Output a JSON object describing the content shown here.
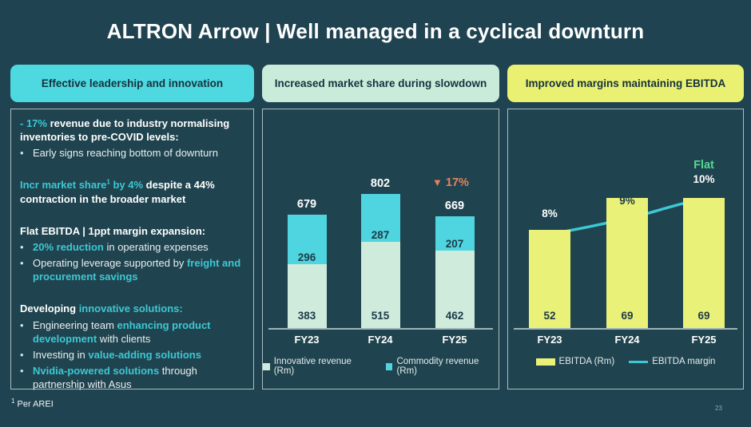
{
  "header": {
    "title": "ALTRON Arrow | Well managed in a cyclical downturn"
  },
  "page_number": "23",
  "footnote": {
    "sup": "1",
    "text": "Per AREI"
  },
  "colors": {
    "background": "#1f4350",
    "pill_cyan": "#4ed8e0",
    "pill_mint": "#c9ebda",
    "pill_yellow": "#eaf172",
    "accent_cyan_text": "#3cc8d4",
    "bar_mint": "#cfebdc",
    "bar_cyan": "#4fd5df",
    "bar_yellow": "#eaf178",
    "line_cyan": "#3cc8d4",
    "orange_annotation": "#e8825a",
    "green_annotation": "#55d795",
    "dark_text": "#1c3b47"
  },
  "columns": [
    {
      "pill": "Effective leadership and innovation",
      "pill_color": "#4ed8e0"
    },
    {
      "pill": "Increased market share during slowdown",
      "pill_color": "#c9ebda"
    },
    {
      "pill": "Improved margins maintaining EBITDA",
      "pill_color": "#eaf172"
    }
  ],
  "left_panel": {
    "blocks": [
      {
        "type": "para",
        "segments": [
          {
            "t": "- 17%",
            "c": "accent"
          },
          {
            "t": " revenue due to industry normalising inventories to pre-COVID levels:",
            "c": "white"
          }
        ]
      },
      {
        "type": "bullet",
        "segments": [
          {
            "t": "Early signs reaching bottom of downturn",
            "c": "plain"
          }
        ]
      },
      {
        "type": "spacer"
      },
      {
        "type": "para",
        "segments": [
          {
            "t": "Incr market share",
            "c": "accent"
          },
          {
            "t": "1",
            "c": "accent",
            "sup": true
          },
          {
            "t": " by 4%",
            "c": "accent"
          },
          {
            "t": " despite a 44% contraction in the broader market",
            "c": "white"
          }
        ]
      },
      {
        "type": "spacer"
      },
      {
        "type": "para",
        "segments": [
          {
            "t": "Flat EBITDA | 1ppt margin expansion:",
            "c": "white"
          }
        ]
      },
      {
        "type": "bullet",
        "segments": [
          {
            "t": "20% reduction",
            "c": "accent"
          },
          {
            "t": " in operating expenses",
            "c": "plain"
          }
        ]
      },
      {
        "type": "bullet",
        "segments": [
          {
            "t": "Operating leverage supported by ",
            "c": "plain"
          },
          {
            "t": "freight and procurement savings",
            "c": "accent"
          }
        ]
      },
      {
        "type": "spacer"
      },
      {
        "type": "para",
        "segments": [
          {
            "t": "Developing ",
            "c": "white"
          },
          {
            "t": "innovative solutions:",
            "c": "accent"
          }
        ]
      },
      {
        "type": "bullet",
        "segments": [
          {
            "t": "Engineering team ",
            "c": "plain"
          },
          {
            "t": "enhancing product development",
            "c": "accent"
          },
          {
            "t": " with clients",
            "c": "plain"
          }
        ]
      },
      {
        "type": "bullet",
        "segments": [
          {
            "t": "Investing in ",
            "c": "plain"
          },
          {
            "t": "value-adding solutions",
            "c": "accent"
          }
        ]
      },
      {
        "type": "bullet",
        "segments": [
          {
            "t": "Nvidia-powered solutions",
            "c": "accent"
          },
          {
            "t": " through partnership with Asus",
            "c": "plain"
          }
        ]
      }
    ]
  },
  "chart_data": [
    {
      "type": "bar",
      "stacked": true,
      "title": "Increased market share during slowdown",
      "categories": [
        "FY23",
        "FY24",
        "FY25"
      ],
      "series": [
        {
          "name": "Innovative revenue (Rm)",
          "values": [
            383,
            515,
            462
          ],
          "color": "#cfebdc"
        },
        {
          "name": "Commodity revenue (Rm)",
          "values": [
            296,
            287,
            207
          ],
          "color": "#4fd5df"
        }
      ],
      "totals": [
        679,
        802,
        669
      ],
      "annotation": {
        "symbol": "▼",
        "text": "17%",
        "color": "#e8825a"
      },
      "ylim": [
        0,
        850
      ],
      "grid": false,
      "legend_position": "bottom"
    },
    {
      "type": "bar+line",
      "title": "Improved margins maintaining EBITDA",
      "categories": [
        "FY23",
        "FY24",
        "FY25"
      ],
      "series": [
        {
          "name": "EBITDA (Rm)",
          "kind": "bar",
          "values": [
            52,
            69,
            69
          ],
          "color": "#eaf178"
        },
        {
          "name": "EBITDA margin",
          "kind": "line",
          "values": [
            "8%",
            "9%",
            "10%"
          ],
          "color": "#3cc8d4"
        }
      ],
      "value_label_colors": [
        "#ffffff",
        "#1c3b47",
        "#ffffff"
      ],
      "annotation": {
        "text": "Flat",
        "color": "#55d795"
      },
      "ylim": [
        0,
        110
      ],
      "grid": false,
      "legend_position": "bottom"
    }
  ]
}
